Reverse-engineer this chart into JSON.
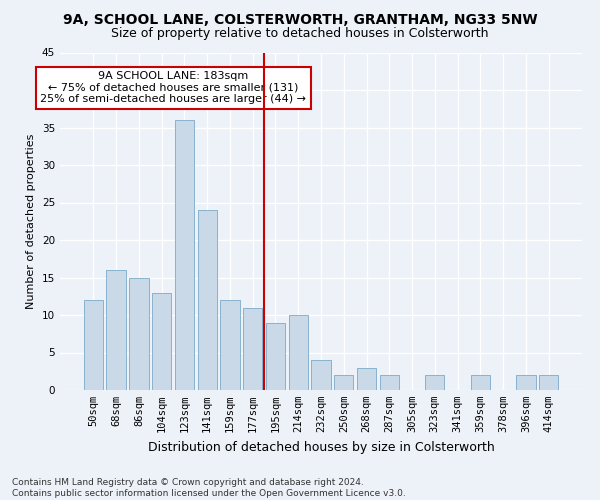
{
  "title1": "9A, SCHOOL LANE, COLSTERWORTH, GRANTHAM, NG33 5NW",
  "title2": "Size of property relative to detached houses in Colsterworth",
  "xlabel": "Distribution of detached houses by size in Colsterworth",
  "ylabel": "Number of detached properties",
  "categories": [
    "50sqm",
    "68sqm",
    "86sqm",
    "104sqm",
    "123sqm",
    "141sqm",
    "159sqm",
    "177sqm",
    "195sqm",
    "214sqm",
    "232sqm",
    "250sqm",
    "268sqm",
    "287sqm",
    "305sqm",
    "323sqm",
    "341sqm",
    "359sqm",
    "378sqm",
    "396sqm",
    "414sqm"
  ],
  "values": [
    12,
    16,
    15,
    13,
    36,
    24,
    12,
    11,
    9,
    10,
    4,
    2,
    3,
    2,
    0,
    2,
    0,
    2,
    0,
    2,
    2
  ],
  "bar_color": "#c9d9e8",
  "bar_edge_color": "#7aaac8",
  "highlight_line_color": "#cc0000",
  "highlight_index": 7,
  "annotation_text": "9A SCHOOL LANE: 183sqm\n← 75% of detached houses are smaller (131)\n25% of semi-detached houses are larger (44) →",
  "annotation_box_facecolor": "#ffffff",
  "annotation_box_edgecolor": "#cc0000",
  "ylim": [
    0,
    45
  ],
  "yticks": [
    0,
    5,
    10,
    15,
    20,
    25,
    30,
    35,
    40,
    45
  ],
  "background_color": "#edf2f8",
  "grid_color": "#ffffff",
  "title1_fontsize": 10,
  "title2_fontsize": 9,
  "xlabel_fontsize": 9,
  "ylabel_fontsize": 8,
  "tick_fontsize": 7.5,
  "annotation_fontsize": 8,
  "footnote": "Contains HM Land Registry data © Crown copyright and database right 2024.\nContains public sector information licensed under the Open Government Licence v3.0.",
  "footnote_fontsize": 6.5
}
